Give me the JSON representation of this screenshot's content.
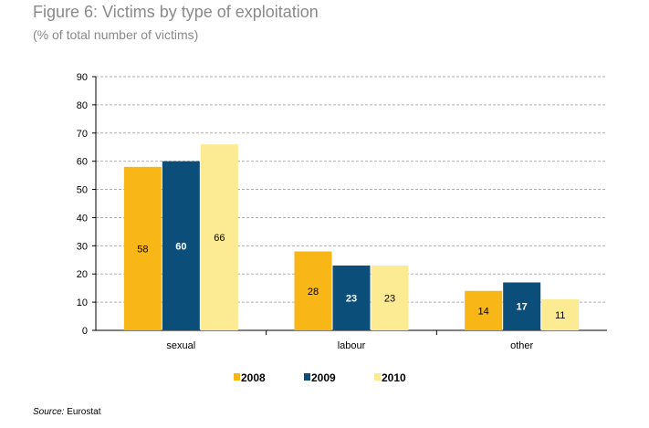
{
  "chart_data": {
    "type": "bar",
    "title": "Figure 6: Victims by type of exploitation",
    "subtitle": "(% of total number of victims)",
    "categories": [
      "sexual",
      "labour",
      "other"
    ],
    "series": [
      {
        "name": "2008",
        "values": [
          58,
          28,
          14
        ],
        "color": "#F8B617"
      },
      {
        "name": "2009",
        "values": [
          60,
          23,
          17
        ],
        "color": "#0C4E7A"
      },
      {
        "name": "2010",
        "values": [
          66,
          23,
          11
        ],
        "color": "#FCEB93"
      }
    ],
    "ylim": [
      0,
      90
    ],
    "yticks": [
      0,
      10,
      20,
      30,
      40,
      50,
      60,
      70,
      80,
      90
    ],
    "grid": true,
    "legend": "bottom",
    "xlabel": "",
    "ylabel": ""
  },
  "source_label": "Source:",
  "source_value": "Eurostat"
}
